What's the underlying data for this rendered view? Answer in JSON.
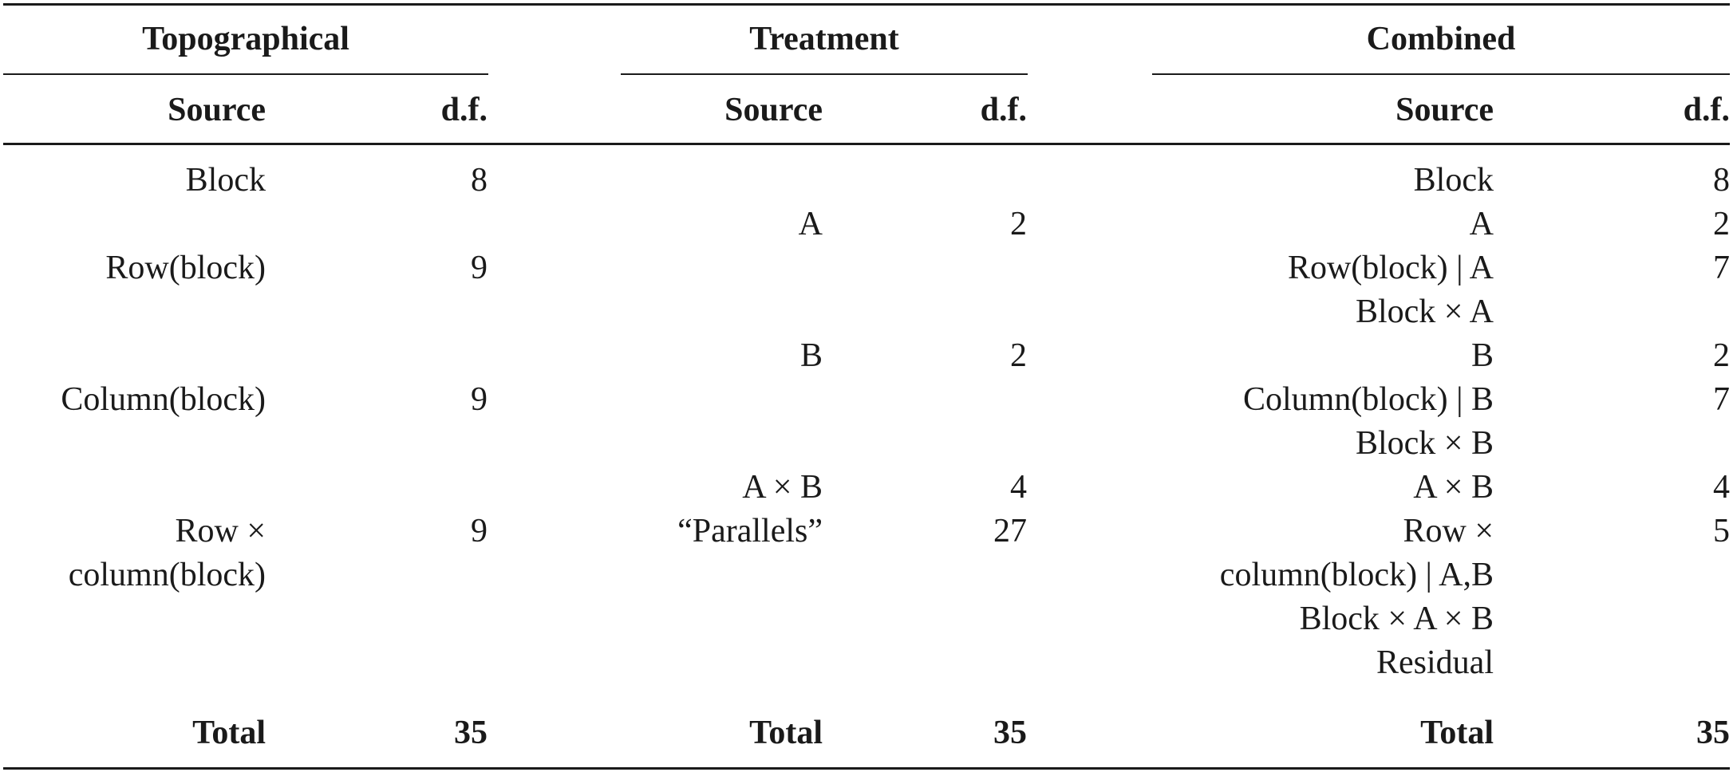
{
  "groups": {
    "topo": "Topographical",
    "treat": "Treatment",
    "comb": "Combined"
  },
  "headers": {
    "source": "Source",
    "df": "d.f."
  },
  "topographical": [
    {
      "source": "Block",
      "df": "8"
    },
    {
      "source": "Row(block)",
      "df": "9"
    },
    {
      "source": "Column(block)",
      "df": "9"
    },
    {
      "source": "Row ×",
      "df": "9"
    },
    {
      "source": "column(block)",
      "df": ""
    }
  ],
  "treatment": [
    {
      "source": "A",
      "df": "2"
    },
    {
      "source": "B",
      "df": "2"
    },
    {
      "source": "A × B",
      "df": "4"
    },
    {
      "source": "“Parallels”",
      "df": "27"
    }
  ],
  "combined": [
    {
      "source": "Block",
      "df": "8"
    },
    {
      "source": "A",
      "df": "2"
    },
    {
      "source": "Row(block) | A",
      "df": "7"
    },
    {
      "source": "Block × A",
      "df": ""
    },
    {
      "source": "B",
      "df": "2"
    },
    {
      "source": "Column(block) | B",
      "df": "7"
    },
    {
      "source": "Block × B",
      "df": ""
    },
    {
      "source": "A × B",
      "df": "4"
    },
    {
      "source": "Row ×",
      "df": "5"
    },
    {
      "source": "column(block) | A,B",
      "df": ""
    },
    {
      "source": "Block × A × B",
      "df": ""
    },
    {
      "source": "Residual",
      "df": ""
    }
  ],
  "totals": {
    "label": "Total",
    "topo": "35",
    "treat": "35",
    "comb": "35"
  }
}
